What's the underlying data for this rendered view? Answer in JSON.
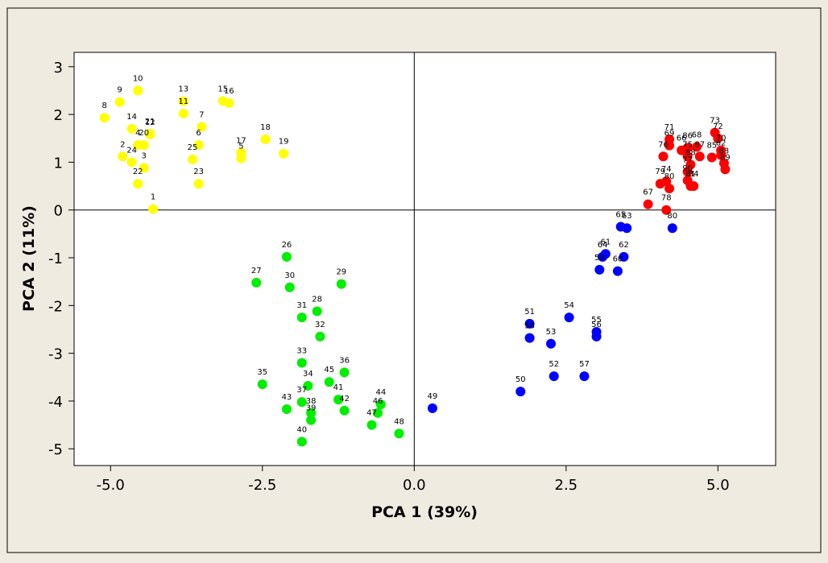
{
  "chart_data": {
    "type": "scatter",
    "title": "",
    "xlabel": "PCA 1 (39%)",
    "ylabel": "PCA 2 (11%)",
    "xlim": [
      -5.6,
      5.95
    ],
    "ylim": [
      -5.35,
      3.3
    ],
    "xticks": [
      -5.0,
      -2.5,
      0.0,
      2.5,
      5.0
    ],
    "xtick_labels": [
      "-5.0",
      "-2.5",
      "0.0",
      "2.5",
      "5.0"
    ],
    "yticks": [
      3,
      2,
      1,
      0,
      -1,
      -2,
      -3,
      -4,
      -5
    ],
    "ytick_labels": [
      "3",
      "2",
      "1",
      "0",
      "-1",
      "-2",
      "-3",
      "-4",
      "-5"
    ],
    "reference_lines": {
      "x": 0,
      "y": 0
    },
    "grid": false,
    "legend": "none",
    "colors": {
      "yellow": "#ffff00",
      "green": "#00ee00",
      "blue": "#0000ff",
      "red": "#ff0000",
      "frame_bg": "#efebe1",
      "plot_bg": "#ffffff"
    },
    "series": [
      {
        "color": "yellow",
        "points": [
          {
            "label": "1",
            "x": -4.3,
            "y": 0.02
          },
          {
            "label": "2",
            "x": -4.8,
            "y": 1.12
          },
          {
            "label": "3",
            "x": -4.45,
            "y": 0.88
          },
          {
            "label": "4",
            "x": -4.55,
            "y": 1.36
          },
          {
            "label": "5",
            "x": -2.85,
            "y": 1.08
          },
          {
            "label": "6",
            "x": -3.55,
            "y": 1.36
          },
          {
            "label": "7",
            "x": -3.5,
            "y": 1.74
          },
          {
            "label": "8",
            "x": -5.1,
            "y": 1.93
          },
          {
            "label": "9",
            "x": -4.85,
            "y": 2.26
          },
          {
            "label": "10",
            "x": -4.55,
            "y": 2.5
          },
          {
            "label": "11",
            "x": -3.8,
            "y": 2.02
          },
          {
            "label": "12",
            "x": -4.35,
            "y": 1.58
          },
          {
            "label": "13",
            "x": -3.8,
            "y": 2.28
          },
          {
            "label": "14",
            "x": -4.65,
            "y": 1.7
          },
          {
            "label": "15",
            "x": -3.15,
            "y": 2.28
          },
          {
            "label": "16",
            "x": -3.05,
            "y": 2.24
          },
          {
            "label": "17",
            "x": -2.85,
            "y": 1.2
          },
          {
            "label": "18",
            "x": -2.45,
            "y": 1.48
          },
          {
            "label": "19",
            "x": -2.15,
            "y": 1.18
          },
          {
            "label": "20",
            "x": -4.45,
            "y": 1.36
          },
          {
            "label": "21",
            "x": -4.35,
            "y": 1.6
          },
          {
            "label": "22",
            "x": -4.55,
            "y": 0.55
          },
          {
            "label": "23",
            "x": -3.55,
            "y": 0.55
          },
          {
            "label": "24",
            "x": -4.65,
            "y": 1.0
          },
          {
            "label": "25",
            "x": -3.65,
            "y": 1.06
          }
        ]
      },
      {
        "color": "green",
        "points": [
          {
            "label": "26",
            "x": -2.1,
            "y": -0.98
          },
          {
            "label": "27",
            "x": -2.6,
            "y": -1.52
          },
          {
            "label": "28",
            "x": -1.6,
            "y": -2.12
          },
          {
            "label": "29",
            "x": -1.2,
            "y": -1.55
          },
          {
            "label": "30",
            "x": -2.05,
            "y": -1.62
          },
          {
            "label": "31",
            "x": -1.85,
            "y": -2.25
          },
          {
            "label": "32",
            "x": -1.55,
            "y": -2.65
          },
          {
            "label": "33",
            "x": -1.85,
            "y": -3.2
          },
          {
            "label": "34",
            "x": -1.75,
            "y": -3.68
          },
          {
            "label": "35",
            "x": -2.5,
            "y": -3.65
          },
          {
            "label": "36",
            "x": -1.15,
            "y": -3.4
          },
          {
            "label": "37",
            "x": -1.85,
            "y": -4.02
          },
          {
            "label": "38",
            "x": -1.7,
            "y": -4.25
          },
          {
            "label": "39",
            "x": -1.7,
            "y": -4.4
          },
          {
            "label": "40",
            "x": -1.85,
            "y": -4.85
          },
          {
            "label": "41",
            "x": -1.25,
            "y": -3.97
          },
          {
            "label": "42",
            "x": -1.15,
            "y": -4.2
          },
          {
            "label": "43",
            "x": -2.1,
            "y": -4.17
          },
          {
            "label": "44",
            "x": -0.55,
            "y": -4.07
          },
          {
            "label": "45",
            "x": -1.4,
            "y": -3.6
          },
          {
            "label": "46",
            "x": -0.6,
            "y": -4.25
          },
          {
            "label": "47",
            "x": -0.7,
            "y": -4.5
          },
          {
            "label": "48",
            "x": -0.25,
            "y": -4.68
          }
        ]
      },
      {
        "color": "blue",
        "points": [
          {
            "label": "49",
            "x": 0.3,
            "y": -4.15
          },
          {
            "label": "50",
            "x": 1.75,
            "y": -3.8
          },
          {
            "label": "51",
            "x": 1.9,
            "y": -2.38
          },
          {
            "label": "52",
            "x": 2.3,
            "y": -3.48
          },
          {
            "label": "53",
            "x": 2.25,
            "y": -2.8
          },
          {
            "label": "54",
            "x": 2.55,
            "y": -2.25
          },
          {
            "label": "55",
            "x": 3.0,
            "y": -2.55
          },
          {
            "label": "56",
            "x": 3.0,
            "y": -2.65
          },
          {
            "label": "57",
            "x": 2.8,
            "y": -3.48
          },
          {
            "label": "58",
            "x": 1.9,
            "y": -2.68
          },
          {
            "label": "59",
            "x": 3.05,
            "y": -1.25
          },
          {
            "label": "60",
            "x": 3.35,
            "y": -1.28
          },
          {
            "label": "61",
            "x": 3.15,
            "y": -0.92
          },
          {
            "label": "62",
            "x": 3.45,
            "y": -0.98
          },
          {
            "label": "63",
            "x": 3.5,
            "y": -0.38
          },
          {
            "label": "64",
            "x": 3.1,
            "y": -0.98
          },
          {
            "label": "65",
            "x": 3.4,
            "y": -0.35
          },
          {
            "label": "80",
            "x": 4.25,
            "y": -0.38
          }
        ]
      },
      {
        "color": "red",
        "points": [
          {
            "label": "66",
            "x": 4.4,
            "y": 1.25
          },
          {
            "label": "67",
            "x": 3.85,
            "y": 0.12
          },
          {
            "label": "68",
            "x": 4.65,
            "y": 1.32
          },
          {
            "label": "69",
            "x": 4.2,
            "y": 1.35
          },
          {
            "label": "70",
            "x": 5.05,
            "y": 1.25
          },
          {
            "label": "71",
            "x": 4.2,
            "y": 1.48
          },
          {
            "label": "72",
            "x": 5.0,
            "y": 1.5
          },
          {
            "label": "73",
            "x": 4.95,
            "y": 1.62
          },
          {
            "label": "74",
            "x": 4.15,
            "y": 0.6
          },
          {
            "label": "75",
            "x": 4.5,
            "y": 1.12
          },
          {
            "label": "76",
            "x": 4.1,
            "y": 1.12
          },
          {
            "label": "77",
            "x": 4.5,
            "y": 0.8
          },
          {
            "label": "78",
            "x": 4.15,
            "y": 0.0
          },
          {
            "label": "79",
            "x": 4.05,
            "y": 0.55
          },
          {
            "label": "80",
            "x": 4.2,
            "y": 0.45
          },
          {
            "label": "81",
            "x": 4.55,
            "y": 0.5
          },
          {
            "label": "82",
            "x": 5.05,
            "y": 1.15
          },
          {
            "label": "83",
            "x": 5.1,
            "y": 0.98
          },
          {
            "label": "84",
            "x": 4.6,
            "y": 0.5
          },
          {
            "label": "85",
            "x": 4.9,
            "y": 1.1
          },
          {
            "label": "86",
            "x": 4.5,
            "y": 1.3
          },
          {
            "label": "87",
            "x": 4.7,
            "y": 1.12
          },
          {
            "label": "88",
            "x": 4.55,
            "y": 0.95
          },
          {
            "label": "89",
            "x": 5.12,
            "y": 0.85
          },
          {
            "label": "90",
            "x": 4.5,
            "y": 0.62
          }
        ]
      }
    ]
  }
}
